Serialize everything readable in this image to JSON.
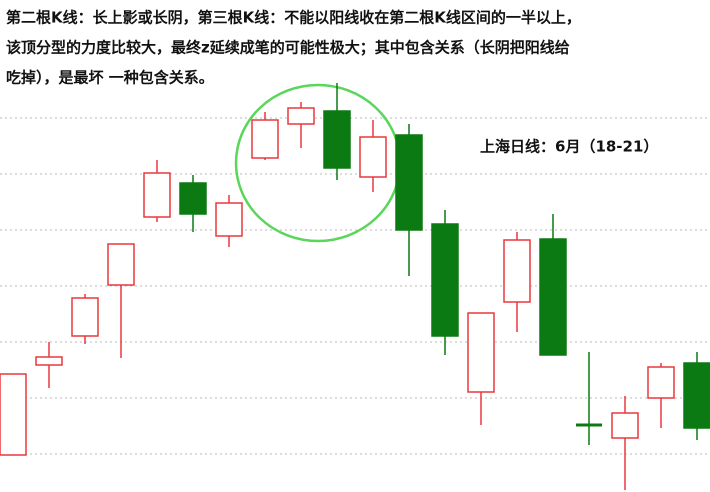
{
  "chart_data": {
    "type": "candlestick",
    "annotations": [
      "第二根K线：长上影或长阴，第三根K线：不能以阳线收在第二根K线区间的一半以上，",
      "该顶分型的力度比较大，最终z延续成笔的可能性极大；其中包含关系（长阴把阳线给",
      "吃掉），是最坏 一种包含关系。"
    ],
    "label": "上海日线：6月（18-21）",
    "open": [
      9.25,
      31.75,
      39,
      51.75,
      68.75,
      77.25,
      64,
      83.5,
      92,
      95.25,
      78.75,
      89.25,
      67,
      25,
      47.5,
      63.25,
      16.75,
      13.5,
      23.5,
      32.25
    ],
    "high": [
      29.5,
      37.5,
      49.5,
      62,
      83,
      79.25,
      74.25,
      95,
      97.5,
      102.25,
      93,
      92,
      70.5,
      44.75,
      65,
      69.5,
      35,
      24,
      32.25,
      35
    ],
    "low": [
      9.25,
      26,
      37,
      33.5,
      67.5,
      65,
      61.25,
      83,
      86,
      78,
      75,
      54,
      34.25,
      16.75,
      40,
      34.25,
      11.75,
      0.5,
      16,
      13
    ],
    "close": [
      29.5,
      33.75,
      48.5,
      62,
      79.75,
      69.5,
      72.25,
      93,
      96,
      81,
      88.75,
      65.5,
      39,
      44.75,
      63,
      34.25,
      16.75,
      19.75,
      31.25,
      16
    ],
    "up_color": "#e8383d",
    "down_color": "#0b7a12",
    "ylim": [
      0,
      123
    ],
    "yticks": [
      9.5,
      23.5,
      37.5,
      51.5,
      65.5,
      79.5,
      93.5
    ],
    "grid": true
  }
}
